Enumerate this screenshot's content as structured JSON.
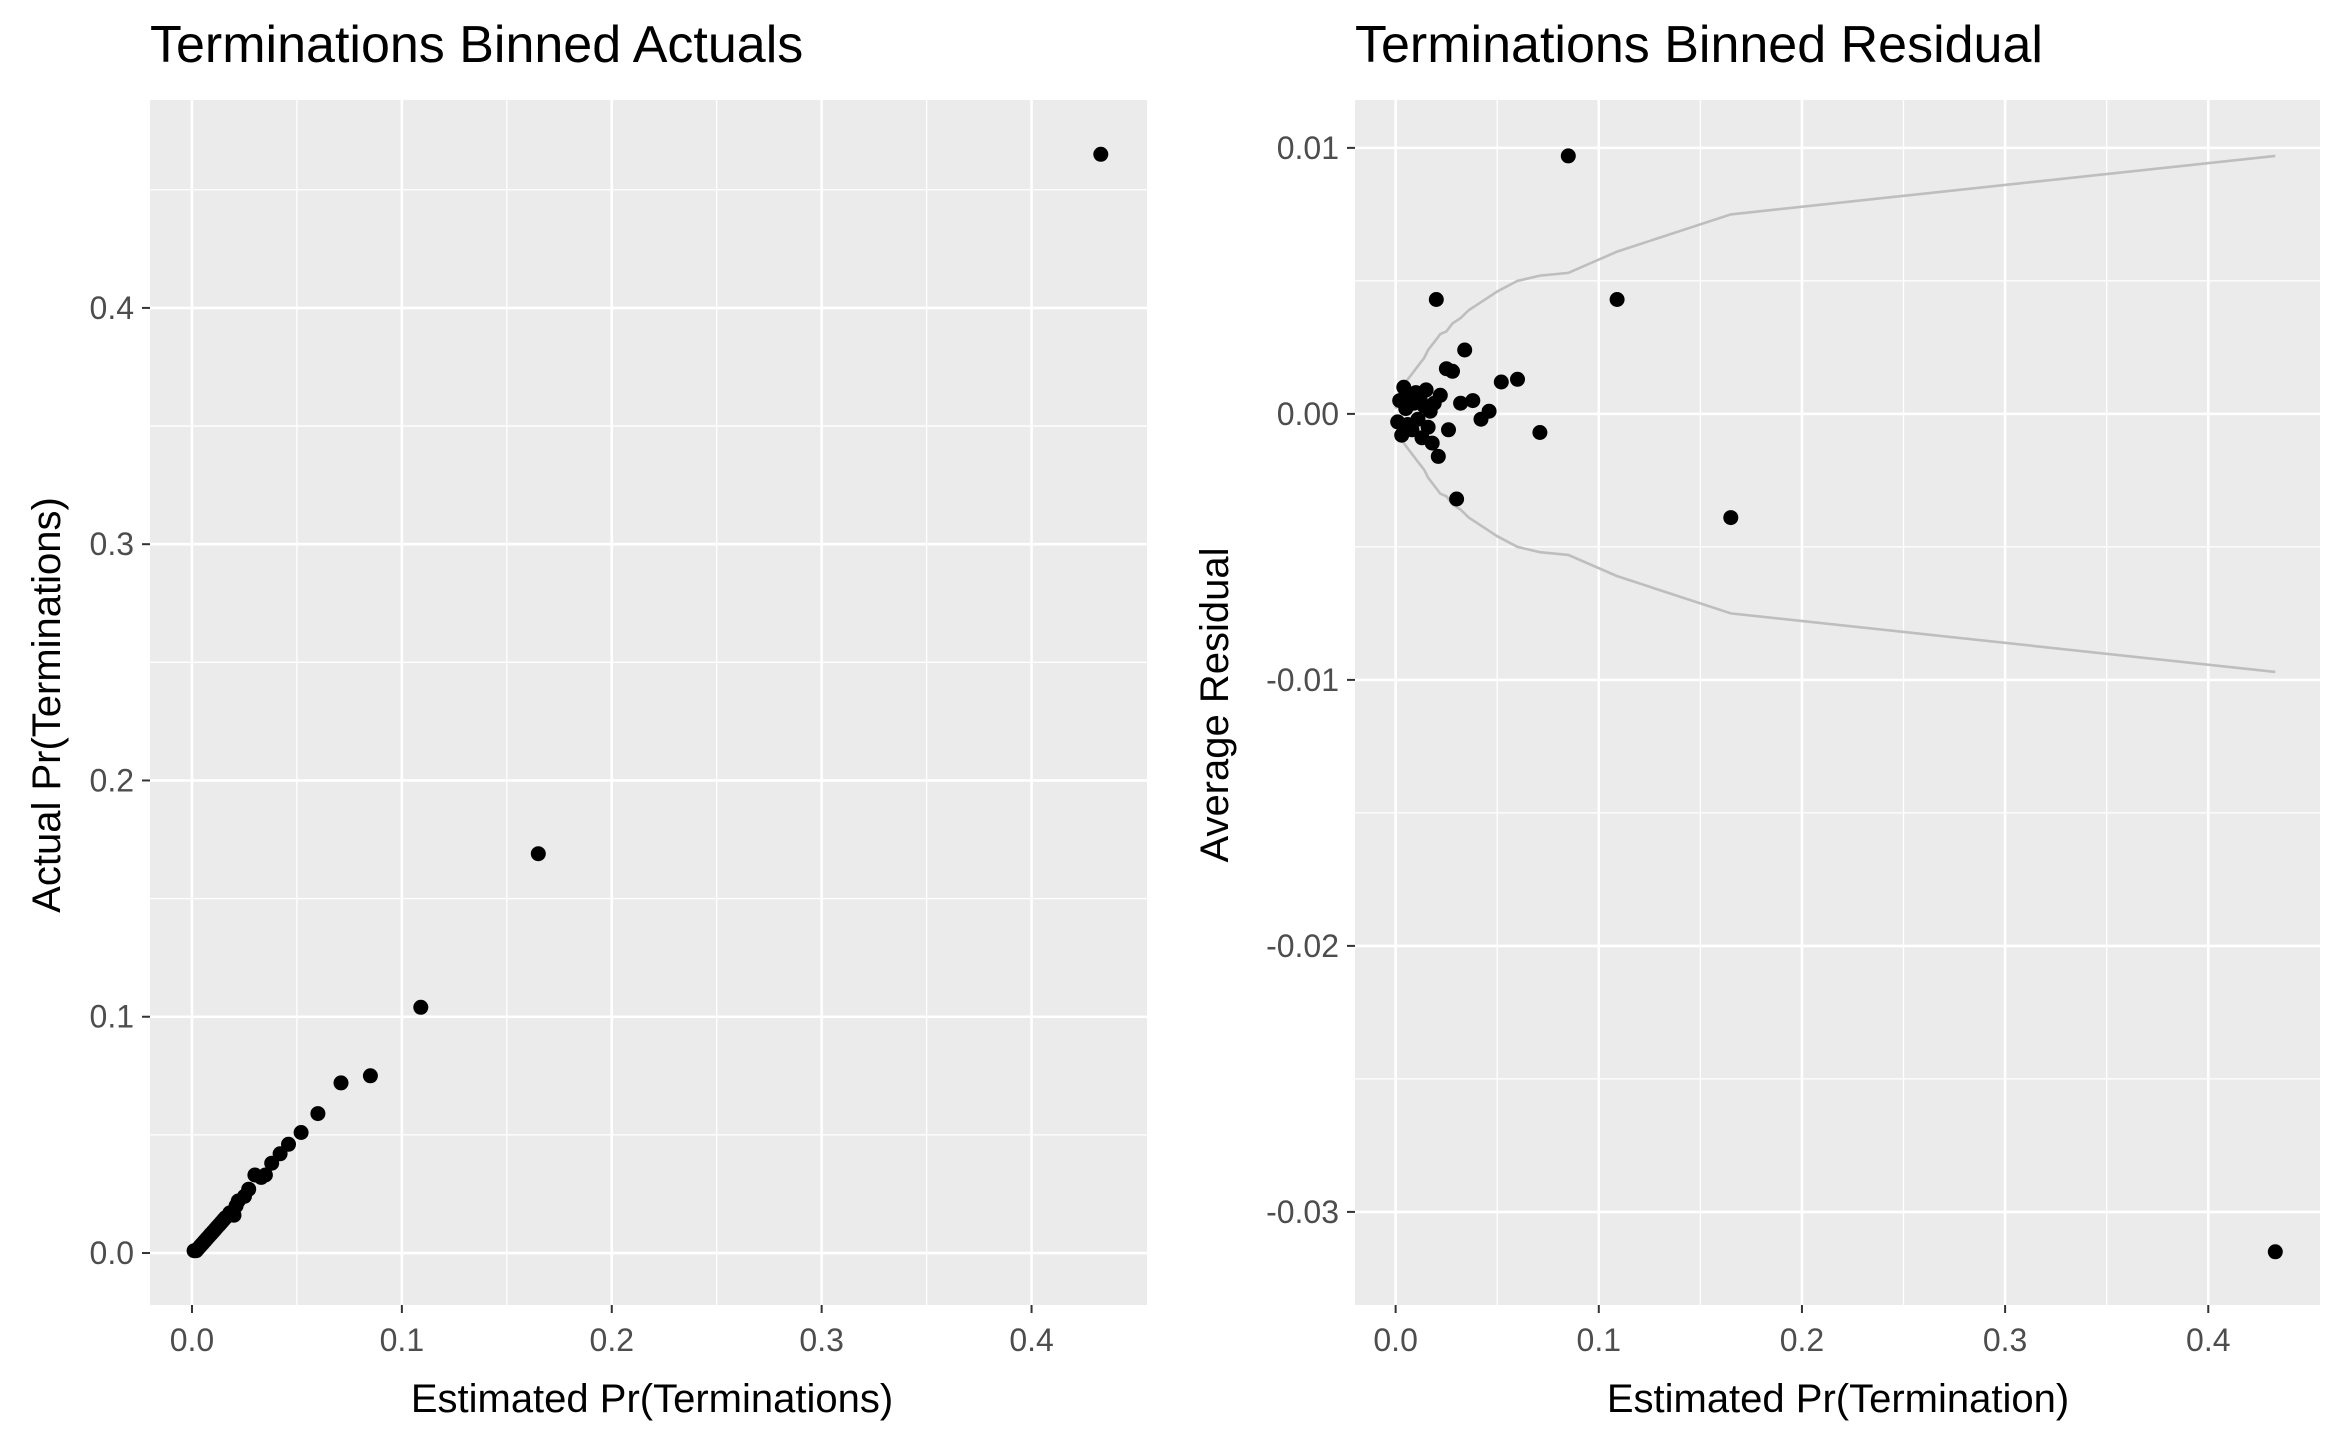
{
  "chart_data": [
    {
      "type": "scatter",
      "title": "Terminations Binned Actuals",
      "xlabel": "Estimated Pr(Terminations)",
      "ylabel": "Actual Pr(Terminations)",
      "xlim": [
        -0.02,
        0.455
      ],
      "ylim": [
        -0.022,
        0.488
      ],
      "x_ticks": [
        0.0,
        0.1,
        0.2,
        0.3,
        0.4
      ],
      "x_tick_labels": [
        "0.0",
        "0.1",
        "0.2",
        "0.3",
        "0.4"
      ],
      "y_ticks": [
        0.0,
        0.1,
        0.2,
        0.3,
        0.4
      ],
      "y_tick_labels": [
        "0.0",
        "0.1",
        "0.2",
        "0.3",
        "0.4"
      ],
      "grid": true,
      "panel_background": "#ebebeb",
      "grid_color": "#ffffff",
      "point_color": "#000000",
      "points": [
        {
          "x": 0.001,
          "y": 0.001
        },
        {
          "x": 0.002,
          "y": 0.001
        },
        {
          "x": 0.003,
          "y": 0.002
        },
        {
          "x": 0.004,
          "y": 0.003
        },
        {
          "x": 0.005,
          "y": 0.004
        },
        {
          "x": 0.006,
          "y": 0.005
        },
        {
          "x": 0.007,
          "y": 0.006
        },
        {
          "x": 0.008,
          "y": 0.007
        },
        {
          "x": 0.009,
          "y": 0.008
        },
        {
          "x": 0.01,
          "y": 0.009
        },
        {
          "x": 0.011,
          "y": 0.01
        },
        {
          "x": 0.012,
          "y": 0.011
        },
        {
          "x": 0.013,
          "y": 0.012
        },
        {
          "x": 0.014,
          "y": 0.013
        },
        {
          "x": 0.015,
          "y": 0.014
        },
        {
          "x": 0.016,
          "y": 0.015
        },
        {
          "x": 0.018,
          "y": 0.017
        },
        {
          "x": 0.02,
          "y": 0.016
        },
        {
          "x": 0.021,
          "y": 0.02
        },
        {
          "x": 0.022,
          "y": 0.022
        },
        {
          "x": 0.025,
          "y": 0.024
        },
        {
          "x": 0.027,
          "y": 0.027
        },
        {
          "x": 0.03,
          "y": 0.033
        },
        {
          "x": 0.033,
          "y": 0.032
        },
        {
          "x": 0.035,
          "y": 0.033
        },
        {
          "x": 0.038,
          "y": 0.038
        },
        {
          "x": 0.042,
          "y": 0.042
        },
        {
          "x": 0.046,
          "y": 0.046
        },
        {
          "x": 0.052,
          "y": 0.051
        },
        {
          "x": 0.06,
          "y": 0.059
        },
        {
          "x": 0.071,
          "y": 0.072
        },
        {
          "x": 0.085,
          "y": 0.075
        },
        {
          "x": 0.109,
          "y": 0.104
        },
        {
          "x": 0.165,
          "y": 0.169
        },
        {
          "x": 0.433,
          "y": 0.465
        }
      ]
    },
    {
      "type": "scatter",
      "title": "Terminations Binned Residual",
      "xlabel": "Estimated Pr(Termination)",
      "ylabel": "Average Residual",
      "xlim": [
        -0.02,
        0.455
      ],
      "ylim": [
        -0.0335,
        0.0118
      ],
      "x_ticks": [
        0.0,
        0.1,
        0.2,
        0.3,
        0.4
      ],
      "x_tick_labels": [
        "0.0",
        "0.1",
        "0.2",
        "0.3",
        "0.4"
      ],
      "y_ticks": [
        0.01,
        0.0,
        -0.01,
        -0.02,
        -0.03
      ],
      "y_tick_labels": [
        "0.01",
        "0.00",
        "-0.01",
        "-0.02",
        "-0.03"
      ],
      "grid": true,
      "panel_background": "#ebebeb",
      "grid_color": "#ffffff",
      "point_color": "#000000",
      "band_color": "#bebebe",
      "points": [
        {
          "x": 0.001,
          "y": -0.0003
        },
        {
          "x": 0.002,
          "y": 0.0005
        },
        {
          "x": 0.003,
          "y": -0.0008
        },
        {
          "x": 0.004,
          "y": 0.001
        },
        {
          "x": 0.005,
          "y": 0.0002
        },
        {
          "x": 0.006,
          "y": -0.0004
        },
        {
          "x": 0.007,
          "y": 0.0007
        },
        {
          "x": 0.008,
          "y": -0.0006
        },
        {
          "x": 0.009,
          "y": 0.0004
        },
        {
          "x": 0.01,
          "y": 0.0008
        },
        {
          "x": 0.011,
          "y": -0.0002
        },
        {
          "x": 0.012,
          "y": 0.0006
        },
        {
          "x": 0.013,
          "y": -0.0009
        },
        {
          "x": 0.014,
          "y": 0.0003
        },
        {
          "x": 0.015,
          "y": 0.0009
        },
        {
          "x": 0.016,
          "y": -0.0005
        },
        {
          "x": 0.017,
          "y": 0.0001
        },
        {
          "x": 0.018,
          "y": -0.0011
        },
        {
          "x": 0.019,
          "y": 0.0004
        },
        {
          "x": 0.02,
          "y": 0.0043
        },
        {
          "x": 0.021,
          "y": -0.0016
        },
        {
          "x": 0.022,
          "y": 0.0007
        },
        {
          "x": 0.025,
          "y": 0.0017
        },
        {
          "x": 0.026,
          "y": -0.0006
        },
        {
          "x": 0.028,
          "y": 0.0016
        },
        {
          "x": 0.03,
          "y": -0.0032
        },
        {
          "x": 0.032,
          "y": 0.0004
        },
        {
          "x": 0.034,
          "y": 0.0024
        },
        {
          "x": 0.038,
          "y": 0.0005
        },
        {
          "x": 0.042,
          "y": -0.0002
        },
        {
          "x": 0.046,
          "y": 0.0001
        },
        {
          "x": 0.052,
          "y": 0.0012
        },
        {
          "x": 0.06,
          "y": 0.0013
        },
        {
          "x": 0.071,
          "y": -0.0007
        },
        {
          "x": 0.085,
          "y": 0.0097
        },
        {
          "x": 0.109,
          "y": 0.0043
        },
        {
          "x": 0.165,
          "y": -0.0039
        },
        {
          "x": 0.433,
          "y": -0.0315
        }
      ],
      "band": [
        {
          "x": 0.0,
          "y": 0.0002
        },
        {
          "x": 0.001,
          "y": 0.0006
        },
        {
          "x": 0.002,
          "y": 0.0008
        },
        {
          "x": 0.004,
          "y": 0.0011
        },
        {
          "x": 0.006,
          "y": 0.0013
        },
        {
          "x": 0.008,
          "y": 0.0015
        },
        {
          "x": 0.01,
          "y": 0.0017
        },
        {
          "x": 0.012,
          "y": 0.0019
        },
        {
          "x": 0.014,
          "y": 0.0021
        },
        {
          "x": 0.016,
          "y": 0.0024
        },
        {
          "x": 0.018,
          "y": 0.0026
        },
        {
          "x": 0.02,
          "y": 0.0028
        },
        {
          "x": 0.022,
          "y": 0.003
        },
        {
          "x": 0.025,
          "y": 0.0031
        },
        {
          "x": 0.028,
          "y": 0.0034
        },
        {
          "x": 0.032,
          "y": 0.0036
        },
        {
          "x": 0.036,
          "y": 0.0039
        },
        {
          "x": 0.042,
          "y": 0.0042
        },
        {
          "x": 0.05,
          "y": 0.0046
        },
        {
          "x": 0.06,
          "y": 0.005
        },
        {
          "x": 0.071,
          "y": 0.0052
        },
        {
          "x": 0.085,
          "y": 0.0053
        },
        {
          "x": 0.109,
          "y": 0.0061
        },
        {
          "x": 0.165,
          "y": 0.0075
        },
        {
          "x": 0.433,
          "y": 0.0097
        }
      ]
    }
  ]
}
